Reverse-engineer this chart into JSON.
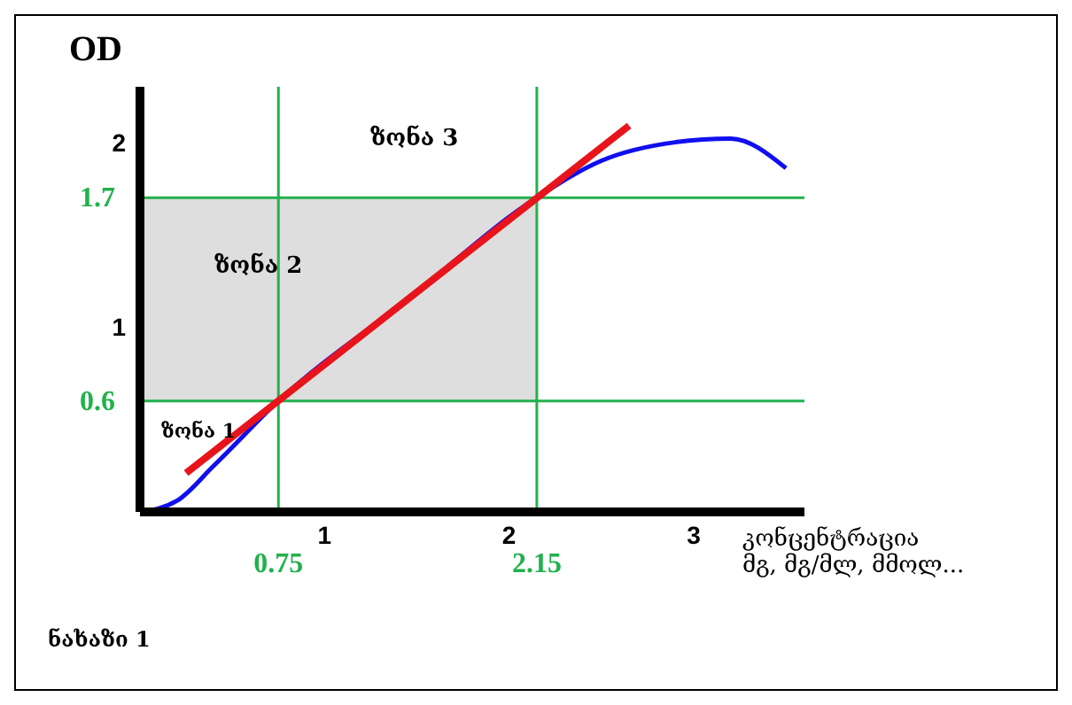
{
  "chart_data": {
    "type": "line",
    "xlabel": "კონცენტრაცია\nმგ, მგ/მლ, მმოლ...",
    "ylabel": "OD",
    "xlim": [
      0,
      3.6
    ],
    "ylim": [
      0,
      2.3
    ],
    "xticks": [
      1,
      2,
      3
    ],
    "yticks": [
      1,
      2
    ],
    "marker": "none",
    "series": [
      {
        "color": "#1010ee",
        "x": [
          0,
          0.2,
          0.4,
          0.75,
          1.45,
          2.15,
          2.5,
          2.9,
          3.2,
          3.5
        ],
        "values": [
          0,
          0.06,
          0.25,
          0.6,
          1.15,
          1.7,
          1.9,
          2.0,
          2.02,
          1.86
        ]
      },
      {
        "color": "#e8141c",
        "x": [
          0.25,
          2.65
        ],
        "values": [
          0.21,
          2.09
        ]
      }
    ],
    "bands": [
      {
        "axis": "y",
        "from": 0.6,
        "to": 1.7,
        "color": "#dedede"
      }
    ],
    "ref_lines": [
      {
        "axis": "x",
        "value": 0.75,
        "label": "0.75",
        "color": "#22b14c"
      },
      {
        "axis": "x",
        "value": 2.15,
        "label": "2.15",
        "color": "#22b14c"
      },
      {
        "axis": "y",
        "value": 0.6,
        "label": "0.6",
        "color": "#22b14c"
      },
      {
        "axis": "y",
        "value": 1.7,
        "label": "1.7",
        "color": "#22b14c"
      }
    ],
    "annotations": [
      "ზონა 1",
      "ზონა 2",
      "ზონა 3",
      "ნახაზი 1"
    ]
  }
}
